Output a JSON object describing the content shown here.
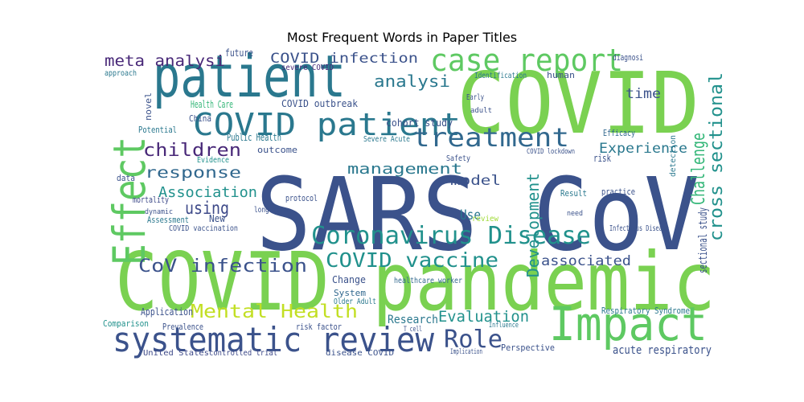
{
  "chart_data": {
    "type": "wordcloud",
    "title": "Most Frequent Words in Paper Titles",
    "words": [
      "SARS CoV",
      "COVID pandemic",
      "COVID",
      "patient",
      "Effect",
      "Impact",
      "systematic review",
      "COVID patient",
      "case report",
      "treatment",
      "Coronavirus Disease",
      "COVID vaccine",
      "Mental Health",
      "Role",
      "CoV infection",
      "children",
      "response",
      "Association",
      "using",
      "management",
      "analysi",
      "meta analysi",
      "COVID infection",
      "Experience",
      "Challenge",
      "cross sectional",
      "sectional study",
      "Development",
      "Use",
      "model",
      "Evaluation",
      "associated",
      "time",
      "Research",
      "Respiratory Syndrome",
      "acute respiratory",
      "Perspective",
      "Application",
      "Comparison",
      "Prevalence",
      "United States",
      "controlled trial",
      "risk factor",
      "disease COVID",
      "Older Adult",
      "System",
      "Change",
      "healthcare worker",
      "Infectious Disease",
      "practice",
      "Result",
      "risk",
      "Efficacy",
      "detection",
      "Health Care",
      "China",
      "Public Health",
      "outcome",
      "Evidence",
      "Potential",
      "COVID outbreak",
      "cohort study",
      "future",
      "severe COVID",
      "diagnosi",
      "Identification",
      "human",
      "COVID lockdown",
      "protocol",
      "long term",
      "New",
      "Assessment",
      "mortality",
      "dynamic",
      "COVID vaccination",
      "data",
      "Severe Acute",
      "novel",
      "approach",
      "review",
      "Early",
      "adult",
      "Safety",
      "need",
      "Influence",
      "Implication",
      "T cell"
    ]
  }
}
